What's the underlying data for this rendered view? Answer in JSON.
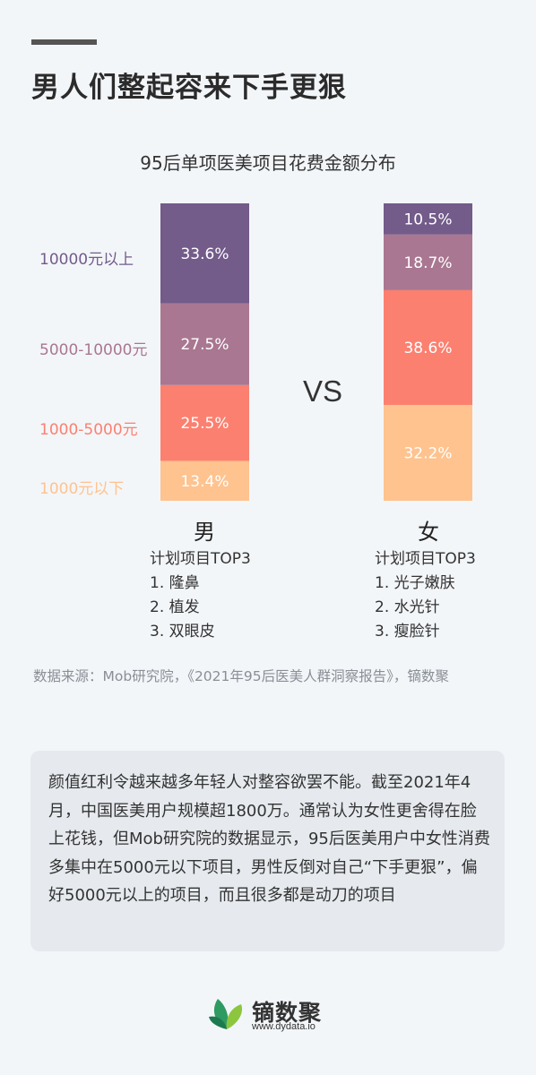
{
  "header": {
    "title": "男人们整起容来下手更狠"
  },
  "chart_data": {
    "type": "bar",
    "stacked": true,
    "title": "95后单项医美项目花费金额分布",
    "categories": [
      "男",
      "女"
    ],
    "series": [
      {
        "name": "10000元以上",
        "values": [
          33.6,
          10.5
        ],
        "labels": [
          "33.6%",
          "10.5%"
        ],
        "color": "#735b8a"
      },
      {
        "name": "5000-10000元",
        "values": [
          27.5,
          18.7
        ],
        "labels": [
          "27.5%",
          "18.7%"
        ],
        "color": "#a97791"
      },
      {
        "name": "1000-5000元",
        "values": [
          25.5,
          38.6
        ],
        "labels": [
          "25.5%",
          "38.6%"
        ],
        "color": "#fb8070"
      },
      {
        "name": "1000元以下",
        "values": [
          13.4,
          32.2
        ],
        "labels": [
          "13.4%",
          "32.2%"
        ],
        "color": "#fec38f"
      }
    ],
    "vs_label": "VS"
  },
  "male": {
    "label": "男",
    "top3_title": "计划项目TOP3",
    "items": [
      "1. 隆鼻",
      "2. 植发",
      "3. 双眼皮"
    ]
  },
  "female": {
    "label": "女",
    "top3_title": "计划项目TOP3",
    "items": [
      "1. 光子嫩肤",
      "2. 水光针",
      "3. 瘦脸针"
    ]
  },
  "source": "数据来源：Mob研究院，《2021年95后医美人群洞察报告》，镝数聚",
  "summary": "颜值红利令越来越多年轻人对整容欲罢不能。截至2021年4月，中国医美用户规模超1800万。通常认为女性更舍得在脸上花钱，但Mob研究院的数据显示，95后医美用户中女性消费多集中在5000元以下项目，男性反倒对自己“下手更狠”，偏好5000元以上的项目，而且很多都是动刀的项目",
  "logo": {
    "name": "镝数聚",
    "url": "www.dydata.io"
  }
}
